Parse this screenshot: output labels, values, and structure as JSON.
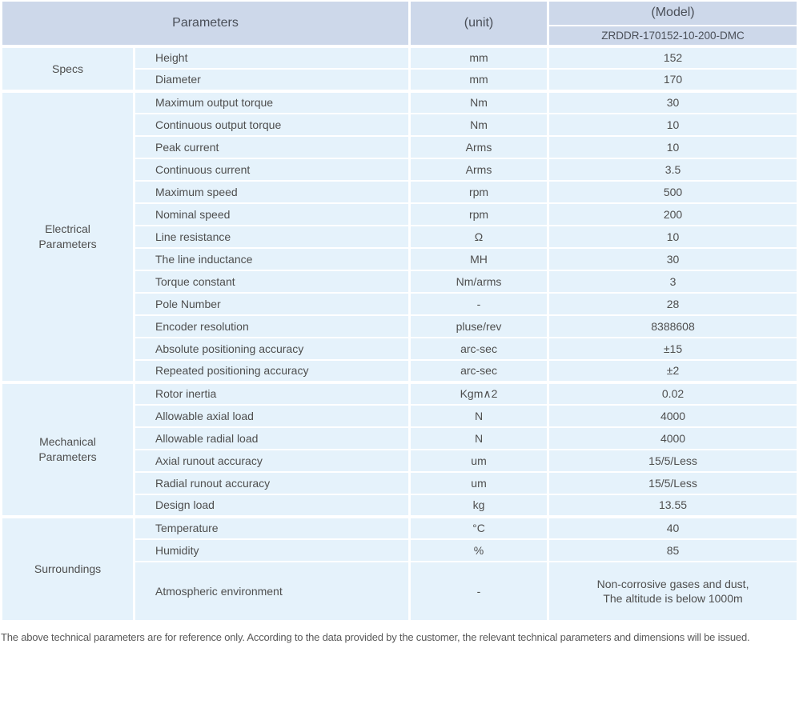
{
  "header": {
    "parameters_label": "Parameters",
    "unit_label": "(unit)",
    "model_label": "(Model)",
    "model_value": "ZRDDR-170152-10-200-DMC"
  },
  "sections": [
    {
      "name": "Specs",
      "rows": [
        {
          "parameter": "Height",
          "unit": "mm",
          "value": "152"
        },
        {
          "parameter": "Diameter",
          "unit": "mm",
          "value": "170"
        }
      ]
    },
    {
      "name": "Electrical\nParameters",
      "rows": [
        {
          "parameter": "Maximum output torque",
          "unit": "Nm",
          "value": "30"
        },
        {
          "parameter": "Continuous output torque",
          "unit": "Nm",
          "value": "10"
        },
        {
          "parameter": "Peak current",
          "unit": "Arms",
          "value": "10"
        },
        {
          "parameter": "Continuous current",
          "unit": "Arms",
          "value": "3.5"
        },
        {
          "parameter": "Maximum speed",
          "unit": "rpm",
          "value": "500"
        },
        {
          "parameter": "Nominal speed",
          "unit": "rpm",
          "value": "200"
        },
        {
          "parameter": "Line resistance",
          "unit": "Ω",
          "value": "10"
        },
        {
          "parameter": "The line inductance",
          "unit": "MH",
          "value": "30"
        },
        {
          "parameter": "Torque constant",
          "unit": "Nm/arms",
          "value": "3"
        },
        {
          "parameter": "Pole Number",
          "unit": "-",
          "value": "28"
        },
        {
          "parameter": "Encoder resolution",
          "unit": "pluse/rev",
          "value": "8388608"
        },
        {
          "parameter": "Absolute positioning accuracy",
          "unit": "arc-sec",
          "value": "±15"
        },
        {
          "parameter": "Repeated positioning accuracy",
          "unit": "arc-sec",
          "value": "±2"
        }
      ]
    },
    {
      "name": "Mechanical\nParameters",
      "rows": [
        {
          "parameter": "Rotor inertia",
          "unit": "Kgm∧2",
          "value": "0.02"
        },
        {
          "parameter": "Allowable axial load",
          "unit": "N",
          "value": "4000"
        },
        {
          "parameter": "Allowable radial load",
          "unit": "N",
          "value": "4000"
        },
        {
          "parameter": "Axial runout accuracy",
          "unit": "um",
          "value": "15/5/Less"
        },
        {
          "parameter": "Radial runout accuracy",
          "unit": "um",
          "value": "15/5/Less"
        },
        {
          "parameter": "Design load",
          "unit": "kg",
          "value": "13.55"
        }
      ]
    },
    {
      "name": "Surroundings",
      "rows": [
        {
          "parameter": "Temperature",
          "unit": "°C",
          "value": "40"
        },
        {
          "parameter": "Humidity",
          "unit": "%",
          "value": "85"
        },
        {
          "parameter": "Atmospheric environment",
          "unit": "-",
          "value": "Non-corrosive gases and dust,\nThe altitude is below 1000m",
          "tall": true
        }
      ]
    }
  ],
  "footnote": "The above technical parameters are for reference only. According to the data provided by the customer, the relevant technical parameters and dimensions will be issued.",
  "colors": {
    "header_bg": "#cdd8ea",
    "cell_bg": "#e5f2fb",
    "text": "#4e4e4e"
  }
}
